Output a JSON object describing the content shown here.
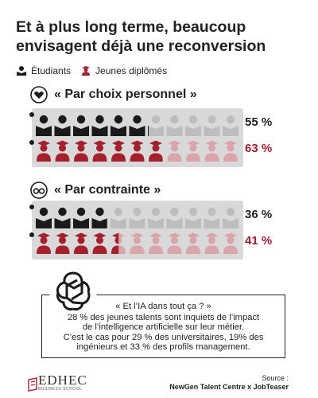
{
  "title": "Et à plus long terme, beaucoup envisagent déjà une reconversion",
  "legend": {
    "students": "Étudiants",
    "graduates": "Jeunes diplômés"
  },
  "sections": [
    {
      "heading": "« Par choix personnel »",
      "icon": "heart-icon",
      "students_pct_label": "55 %",
      "graduates_pct_label": "63 %",
      "students_value": 55,
      "graduates_value": 63
    },
    {
      "heading": "« Par contrainte »",
      "icon": "handcuffs-icon",
      "students_pct_label": "36 %",
      "graduates_pct_label": "41 %",
      "students_value": 36,
      "graduates_value": 41
    }
  ],
  "ai": {
    "question": "« Et l’IA dans tout ça ? »",
    "line1": "28 % des jeunes talents sont inquiets de l’impact",
    "line2": "de l’intelligence artificielle sur leur métier.",
    "line3": "C’est le cas pour 29 % des universitaires, 19% des",
    "line4": "ingénieurs et 33 % des profils management."
  },
  "footer": {
    "brand": "EDHEC",
    "brand_sub": "BUSINESS SCHOOL",
    "source_label": "Source :",
    "source_value": "NewGen Talent Centre x JobTeaser"
  },
  "colors": {
    "dark": "#1a1a1a",
    "red": "#a5202d",
    "panel": "#d9d9d9",
    "faded_dark": "#bdbdbd",
    "faded_red": "#d9a5aa"
  }
}
